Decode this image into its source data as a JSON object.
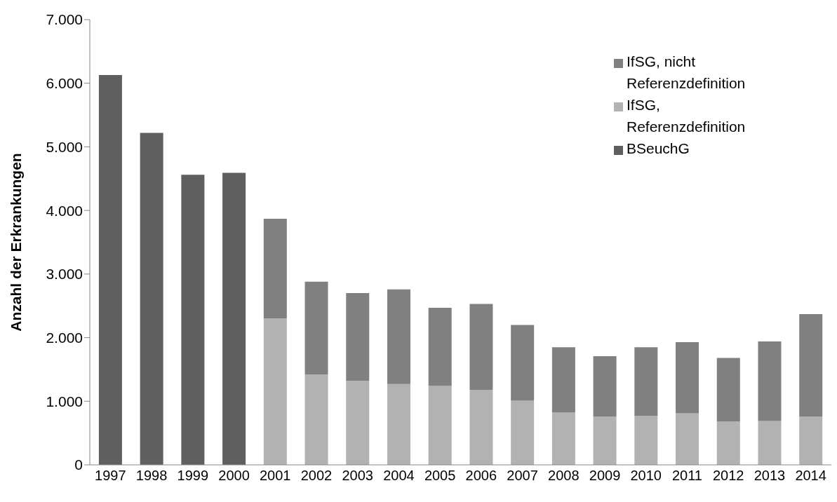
{
  "chart_data": {
    "type": "bar",
    "stacked": true,
    "ylabel": "Anzahl der Erkrankungen",
    "categories": [
      "1997",
      "1998",
      "1999",
      "2000",
      "2001",
      "2002",
      "2003",
      "2004",
      "2005",
      "2006",
      "2007",
      "2008",
      "2009",
      "2010",
      "2011",
      "2012",
      "2013",
      "2014"
    ],
    "series": [
      {
        "name": "BSeuchG",
        "color": "#5f5f5f",
        "values": [
          6130,
          5220,
          4560,
          4590,
          null,
          null,
          null,
          null,
          null,
          null,
          null,
          null,
          null,
          null,
          null,
          null,
          null,
          null
        ]
      },
      {
        "name": "IfSG, Referenzdefinition",
        "color": "#b2b2b2",
        "values": [
          null,
          null,
          null,
          null,
          2300,
          1420,
          1320,
          1270,
          1240,
          1180,
          1010,
          820,
          760,
          770,
          810,
          680,
          690,
          760
        ]
      },
      {
        "name": "IfSG, nicht Referenzdefinition",
        "color": "#808080",
        "values": [
          null,
          null,
          null,
          null,
          1570,
          1460,
          1380,
          1490,
          1230,
          1350,
          1190,
          1030,
          950,
          1080,
          1120,
          1000,
          1250,
          1610
        ]
      }
    ],
    "ylim": [
      0,
      7000
    ],
    "yticks": [
      {
        "value": 0,
        "label": "0"
      },
      {
        "value": 1000,
        "label": "1.000"
      },
      {
        "value": 2000,
        "label": "2.000"
      },
      {
        "value": 3000,
        "label": "3.000"
      },
      {
        "value": 4000,
        "label": "4.000"
      },
      {
        "value": 5000,
        "label": "5.000"
      },
      {
        "value": 6000,
        "label": "6.000"
      },
      {
        "value": 7000,
        "label": "7.000"
      }
    ],
    "legend": "top right"
  }
}
